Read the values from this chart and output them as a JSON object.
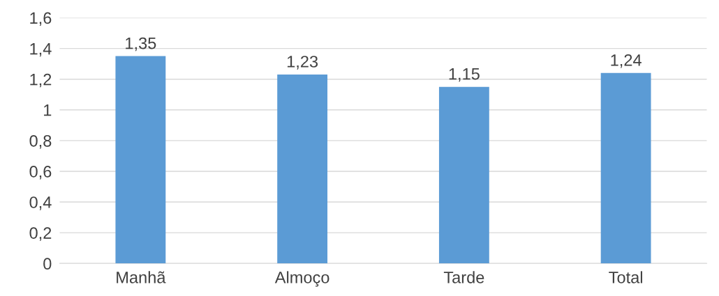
{
  "chart_data": {
    "type": "bar",
    "categories": [
      "Manhã",
      "Almoço",
      "Tarde",
      "Total"
    ],
    "values": [
      1.35,
      1.23,
      1.15,
      1.24
    ],
    "value_labels": [
      "1,35",
      "1,23",
      "1,15",
      "1,24"
    ],
    "color": "#5b9bd5",
    "ylim": [
      0,
      1.6
    ],
    "yticks": [
      0,
      {
        "value": 0.2,
        "label": "0,2"
      },
      {
        "value": 0.4,
        "label": "0,4"
      },
      {
        "value": 0.6,
        "label": "0,6"
      },
      {
        "value": 0.8,
        "label": "0,8"
      },
      1,
      {
        "value": 1.2,
        "label": "1,2"
      },
      {
        "value": 1.4,
        "label": "1,4"
      },
      {
        "value": 1.6,
        "label": "1,6"
      }
    ],
    "grid": "y"
  }
}
